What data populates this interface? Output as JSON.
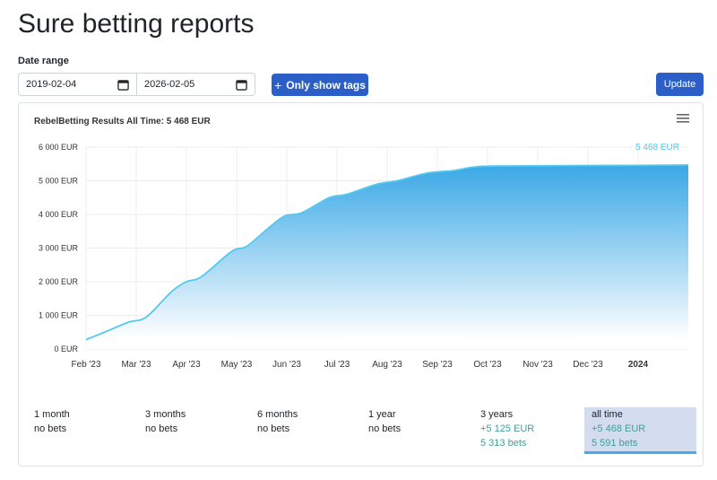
{
  "page": {
    "title": "Sure betting reports",
    "date_range_label": "Date range",
    "date_from": "2019-02-04",
    "date_to": "2026-02-05",
    "tags_button": "Only show tags",
    "update_button": "Update"
  },
  "chart_data": {
    "type": "area",
    "title": "RebelBetting Results All Time: 5 468 EUR",
    "last_value_label": "5 468 EUR",
    "xlabel": "",
    "ylabel": "",
    "x_ticks": [
      "Feb '23",
      "Mar '23",
      "Apr '23",
      "May '23",
      "Jun '23",
      "Jul '23",
      "Aug '23",
      "Sep '23",
      "Oct '23",
      "Nov '23",
      "Dec '23",
      "2024"
    ],
    "y_ticks": [
      "0 EUR",
      "1 000 EUR",
      "2 000 EUR",
      "3 000 EUR",
      "4 000 EUR",
      "5 000 EUR",
      "6 000 EUR"
    ],
    "ylim": [
      0,
      6000
    ],
    "grid": true,
    "colors": {
      "line": "#55c8ee",
      "fill_top": "#3aa8e6",
      "fill_bottom": "#ffffff"
    },
    "series": [
      {
        "x": [
          0,
          0.4,
          0.85,
          1.2,
          1.7,
          2.0,
          2.3,
          2.9,
          3.2,
          3.6,
          3.95,
          4.3,
          4.85,
          5.2,
          5.8,
          6.2,
          6.8,
          7.3,
          7.8,
          8.5,
          9.5,
          10.5,
          11.5,
          12.0
        ],
        "y": [
          280,
          520,
          800,
          950,
          1700,
          2000,
          2150,
          2900,
          3050,
          3550,
          3950,
          4050,
          4500,
          4600,
          4900,
          5000,
          5230,
          5300,
          5420,
          5440,
          5450,
          5455,
          5463,
          5468
        ]
      }
    ]
  },
  "summary": [
    {
      "period": "1 month",
      "amount": "",
      "bets": "no bets",
      "active": false
    },
    {
      "period": "3 months",
      "amount": "",
      "bets": "no bets",
      "active": false
    },
    {
      "period": "6 months",
      "amount": "",
      "bets": "no bets",
      "active": false
    },
    {
      "period": "1 year",
      "amount": "",
      "bets": "no bets",
      "active": false
    },
    {
      "period": "3 years",
      "amount": "+5 125 EUR",
      "bets": "5 313 bets",
      "active": false
    },
    {
      "period": "all time",
      "amount": "+5 468 EUR",
      "bets": "5 591 bets",
      "active": true
    }
  ]
}
